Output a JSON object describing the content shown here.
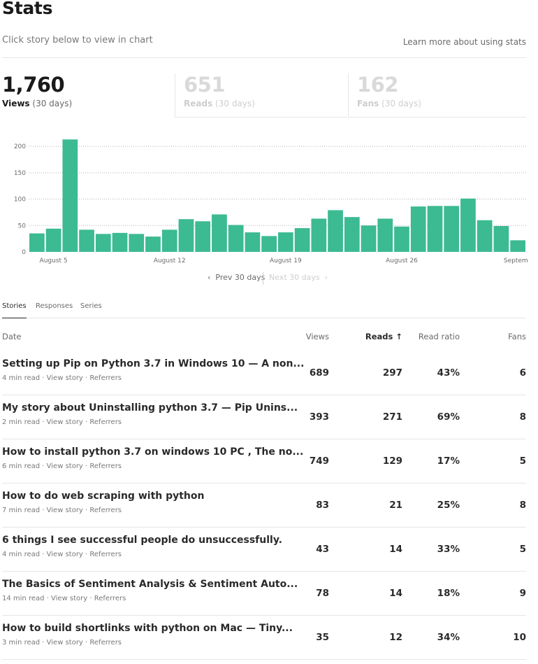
{
  "header": {
    "title": "Stats",
    "subtitle": "Click story below to view in chart",
    "learn_more": "Learn more about using stats"
  },
  "metrics": [
    {
      "value": "1,760",
      "label": "Views",
      "period": "(30 days)",
      "active": true
    },
    {
      "value": "651",
      "label": "Reads",
      "period": "(30 days)",
      "active": false
    },
    {
      "value": "162",
      "label": "Fans",
      "period": "(30 days)",
      "active": false
    }
  ],
  "chart_data": {
    "type": "bar",
    "title": "Views (30 days)",
    "bar_color": "#3cba92",
    "ylim": [
      0,
      220
    ],
    "yticks": [
      0,
      50,
      100,
      150,
      200
    ],
    "grid": true,
    "x_labels": [
      {
        "index": 1,
        "text": "August 5"
      },
      {
        "index": 8,
        "text": "August 12"
      },
      {
        "index": 15,
        "text": "August 19"
      },
      {
        "index": 22,
        "text": "August 26"
      },
      {
        "index": 29,
        "text": "Septemb"
      }
    ],
    "values": [
      35,
      44,
      213,
      42,
      34,
      36,
      34,
      29,
      42,
      62,
      58,
      71,
      51,
      37,
      30,
      37,
      45,
      63,
      79,
      66,
      50,
      63,
      48,
      86,
      87,
      87,
      101,
      60,
      49,
      22
    ]
  },
  "pager": {
    "prev": "Prev 30 days",
    "next": "Next 30 days"
  },
  "tabs": [
    {
      "label": "Stories",
      "active": true
    },
    {
      "label": "Responses",
      "active": false
    },
    {
      "label": "Series",
      "active": false
    }
  ],
  "table": {
    "columns": {
      "date": "Date",
      "views": "Views",
      "reads": "Reads",
      "reads_sort_icon": "↑",
      "ratio": "Read ratio",
      "fans": "Fans"
    },
    "meta_links": {
      "view_story": "View story",
      "referrers": "Referrers"
    },
    "rows": [
      {
        "title": "Setting up Pip on Python 3.7 in Windows 10 — A non...",
        "read_time": "4 min read",
        "views": "689",
        "reads": "297",
        "ratio": "43%",
        "fans": "6"
      },
      {
        "title": "My story about Uninstalling python 3.7 — Pip Unins...",
        "read_time": "2 min read",
        "views": "393",
        "reads": "271",
        "ratio": "69%",
        "fans": "8"
      },
      {
        "title": "How to install python 3.7 on windows 10 PC , The no...",
        "read_time": "6 min read",
        "views": "749",
        "reads": "129",
        "ratio": "17%",
        "fans": "5"
      },
      {
        "title": "How to do web scraping with python",
        "read_time": "7 min read",
        "views": "83",
        "reads": "21",
        "ratio": "25%",
        "fans": "8"
      },
      {
        "title": "6 things I see successful people do unsuccessfully.",
        "read_time": "4 min read",
        "views": "43",
        "reads": "14",
        "ratio": "33%",
        "fans": "5"
      },
      {
        "title": "The Basics of Sentiment Analysis & Sentiment Auto...",
        "read_time": "14 min read",
        "views": "78",
        "reads": "14",
        "ratio": "18%",
        "fans": "9"
      },
      {
        "title": "How to build shortlinks with python on Mac — Tiny...",
        "read_time": "3 min read",
        "views": "35",
        "reads": "12",
        "ratio": "34%",
        "fans": "10"
      }
    ]
  }
}
